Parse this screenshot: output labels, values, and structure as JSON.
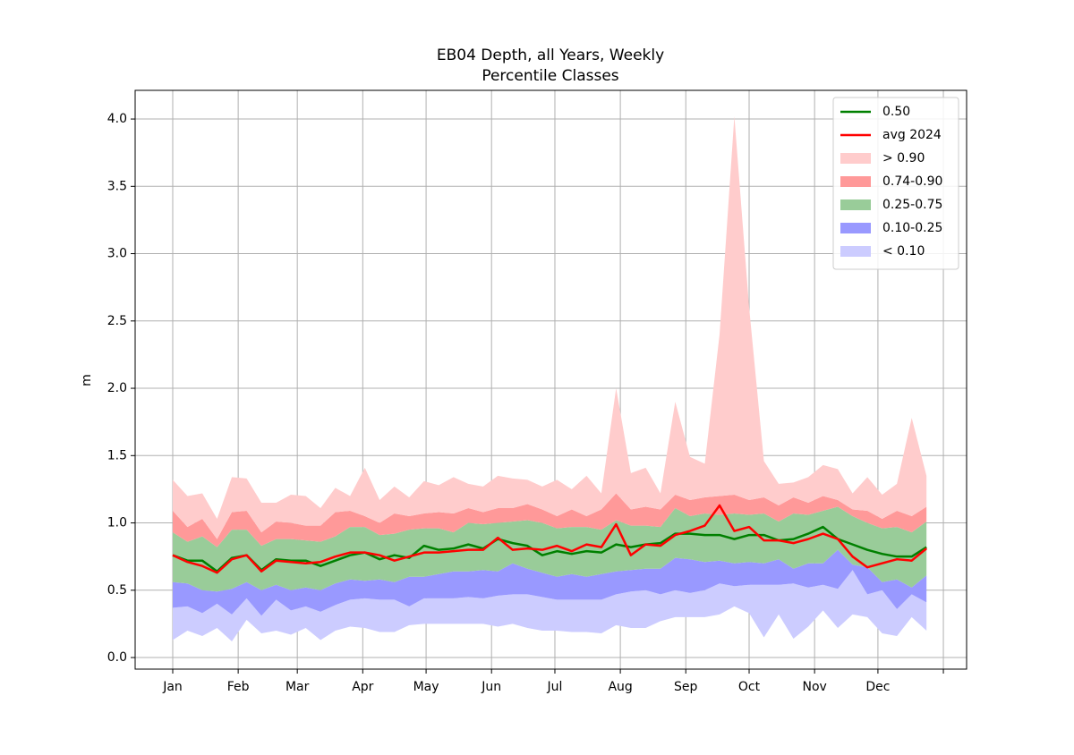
{
  "chart_data": {
    "type": "percentile_bands",
    "title": "EB04 Depth, all Years, Weekly",
    "subtitle": "Percentile Classes",
    "ylabel": "m",
    "x": [
      1,
      8,
      15,
      22,
      29,
      36,
      43,
      50,
      57,
      64,
      71,
      78,
      85,
      92,
      99,
      106,
      113,
      120,
      127,
      134,
      141,
      148,
      155,
      162,
      169,
      176,
      183,
      190,
      197,
      204,
      211,
      218,
      225,
      232,
      239,
      246,
      253,
      260,
      267,
      274,
      281,
      288,
      295,
      302,
      309,
      316,
      323,
      330,
      337,
      344,
      351,
      358
    ],
    "xlim": [
      -16.8,
      377
    ],
    "xticks": [
      {
        "value": 1,
        "label": "Jan"
      },
      {
        "value": 32,
        "label": "Feb"
      },
      {
        "value": 60,
        "label": "Mar"
      },
      {
        "value": 91,
        "label": "Apr"
      },
      {
        "value": 121,
        "label": "May"
      },
      {
        "value": 152,
        "label": "Jun"
      },
      {
        "value": 182,
        "label": "Jul"
      },
      {
        "value": 213,
        "label": "Aug"
      },
      {
        "value": 244,
        "label": "Sep"
      },
      {
        "value": 274,
        "label": "Oct"
      },
      {
        "value": 305,
        "label": "Nov"
      },
      {
        "value": 335,
        "label": "Dec"
      },
      {
        "value": 366,
        "label": null
      }
    ],
    "ylim": [
      -0.086,
      4.213
    ],
    "yticks": [
      {
        "value": 0,
        "label": "0.0"
      },
      0.5,
      {
        "value": 1,
        "label": "1.0"
      },
      1.5,
      {
        "value": 2,
        "label": "2.0"
      },
      2.5,
      {
        "value": 3,
        "label": "3.0"
      },
      3.5,
      {
        "value": 4,
        "label": "4.0"
      }
    ],
    "grid": true,
    "legend": "upper right",
    "series": [
      {
        "name": "0.50",
        "color": "#008000",
        "values": [
          0.76,
          0.72,
          0.72,
          0.64,
          0.74,
          0.76,
          0.65,
          0.73,
          0.72,
          0.72,
          0.68,
          0.72,
          0.76,
          0.78,
          0.73,
          0.76,
          0.74,
          0.83,
          0.8,
          0.81,
          0.84,
          0.81,
          0.88,
          0.85,
          0.83,
          0.76,
          0.79,
          0.77,
          0.79,
          0.78,
          0.84,
          0.82,
          0.84,
          0.85,
          0.92,
          0.92,
          0.91,
          0.91,
          0.88,
          0.91,
          0.91,
          0.87,
          0.88,
          0.92,
          0.97,
          0.88,
          0.84,
          0.8,
          0.77,
          0.75,
          0.75,
          0.82
        ]
      },
      {
        "name": "avg 2024",
        "color": "#ff0000",
        "values": [
          0.76,
          0.71,
          0.68,
          0.63,
          0.73,
          0.76,
          0.64,
          0.72,
          0.71,
          0.7,
          0.71,
          0.75,
          0.78,
          0.78,
          0.76,
          0.72,
          0.75,
          0.78,
          0.78,
          0.79,
          0.8,
          0.8,
          0.89,
          0.8,
          0.81,
          0.8,
          0.83,
          0.79,
          0.84,
          0.82,
          0.99,
          0.76,
          0.84,
          0.83,
          0.91,
          0.94,
          0.98,
          1.13,
          0.94,
          0.97,
          0.87,
          0.87,
          0.85,
          0.88,
          0.92,
          0.88,
          0.75,
          0.67,
          0.7,
          0.73,
          0.72,
          0.81
        ]
      }
    ],
    "bands": [
      {
        "name": "< 0.10",
        "color": "#ccccff",
        "lower": [
          0.13,
          0.2,
          0.16,
          0.22,
          0.12,
          0.28,
          0.18,
          0.2,
          0.17,
          0.22,
          0.13,
          0.2,
          0.23,
          0.22,
          0.19,
          0.19,
          0.24,
          0.25,
          0.25,
          0.25,
          0.25,
          0.25,
          0.23,
          0.25,
          0.22,
          0.2,
          0.2,
          0.19,
          0.19,
          0.18,
          0.24,
          0.22,
          0.22,
          0.27,
          0.3,
          0.3,
          0.3,
          0.32,
          0.38,
          0.33,
          0.15,
          0.32,
          0.14,
          0.23,
          0.35,
          0.22,
          0.32,
          0.3,
          0.18,
          0.16,
          0.3,
          0.2
        ],
        "values": [
          0.37,
          0.38,
          0.33,
          0.4,
          0.32,
          0.44,
          0.31,
          0.43,
          0.35,
          0.38,
          0.34,
          0.39,
          0.43,
          0.44,
          0.43,
          0.43,
          0.38,
          0.44,
          0.44,
          0.44,
          0.45,
          0.44,
          0.46,
          0.47,
          0.47,
          0.45,
          0.43,
          0.43,
          0.43,
          0.43,
          0.47,
          0.49,
          0.5,
          0.47,
          0.5,
          0.48,
          0.5,
          0.55,
          0.53,
          0.54,
          0.54,
          0.54,
          0.55,
          0.52,
          0.54,
          0.51,
          0.65,
          0.47,
          0.5,
          0.36,
          0.47,
          0.41
        ]
      },
      {
        "name": "0.10-0.25",
        "color": "#9999ff",
        "values": [
          0.56,
          0.55,
          0.5,
          0.49,
          0.51,
          0.56,
          0.5,
          0.54,
          0.5,
          0.52,
          0.5,
          0.55,
          0.58,
          0.57,
          0.58,
          0.56,
          0.6,
          0.6,
          0.62,
          0.64,
          0.64,
          0.65,
          0.64,
          0.7,
          0.66,
          0.63,
          0.6,
          0.62,
          0.6,
          0.62,
          0.64,
          0.65,
          0.66,
          0.66,
          0.74,
          0.73,
          0.71,
          0.72,
          0.7,
          0.71,
          0.7,
          0.73,
          0.66,
          0.7,
          0.7,
          0.8,
          0.69,
          0.67,
          0.56,
          0.58,
          0.52,
          0.61
        ]
      },
      {
        "name": "0.25-0.75",
        "color": "#99cc99",
        "values": [
          0.93,
          0.86,
          0.9,
          0.82,
          0.95,
          0.95,
          0.83,
          0.88,
          0.88,
          0.87,
          0.86,
          0.9,
          0.97,
          0.97,
          0.91,
          0.92,
          0.95,
          0.96,
          0.96,
          0.93,
          1.0,
          0.99,
          1.0,
          1.01,
          1.02,
          1.0,
          0.96,
          0.97,
          0.97,
          0.95,
          1.02,
          0.98,
          0.98,
          0.97,
          1.11,
          1.05,
          1.07,
          1.06,
          1.07,
          1.06,
          1.07,
          1.01,
          1.07,
          1.06,
          1.09,
          1.12,
          1.05,
          1.0,
          0.96,
          0.97,
          0.93,
          1.01
        ]
      },
      {
        "name": "0.74-0.90",
        "color": "#ff9999",
        "values": [
          1.09,
          0.97,
          1.03,
          0.88,
          1.08,
          1.09,
          0.93,
          1.01,
          1.0,
          0.98,
          0.98,
          1.08,
          1.09,
          1.05,
          1.0,
          1.07,
          1.05,
          1.07,
          1.08,
          1.07,
          1.11,
          1.08,
          1.11,
          1.11,
          1.14,
          1.1,
          1.05,
          1.1,
          1.05,
          1.1,
          1.22,
          1.1,
          1.12,
          1.1,
          1.21,
          1.17,
          1.19,
          1.2,
          1.21,
          1.17,
          1.19,
          1.13,
          1.19,
          1.15,
          1.2,
          1.17,
          1.1,
          1.09,
          1.03,
          1.09,
          1.05,
          1.12
        ]
      },
      {
        "name": "> 0.90",
        "color": "#ffcccc",
        "values": [
          1.32,
          1.2,
          1.22,
          1.03,
          1.34,
          1.33,
          1.15,
          1.15,
          1.21,
          1.2,
          1.11,
          1.26,
          1.2,
          1.41,
          1.17,
          1.27,
          1.19,
          1.31,
          1.28,
          1.34,
          1.29,
          1.27,
          1.35,
          1.33,
          1.32,
          1.27,
          1.32,
          1.25,
          1.35,
          1.22,
          2.0,
          1.37,
          1.41,
          1.22,
          1.9,
          1.49,
          1.44,
          2.4,
          4.02,
          2.6,
          1.46,
          1.29,
          1.3,
          1.34,
          1.43,
          1.4,
          1.22,
          1.34,
          1.21,
          1.29,
          1.78,
          1.35
        ]
      }
    ]
  }
}
